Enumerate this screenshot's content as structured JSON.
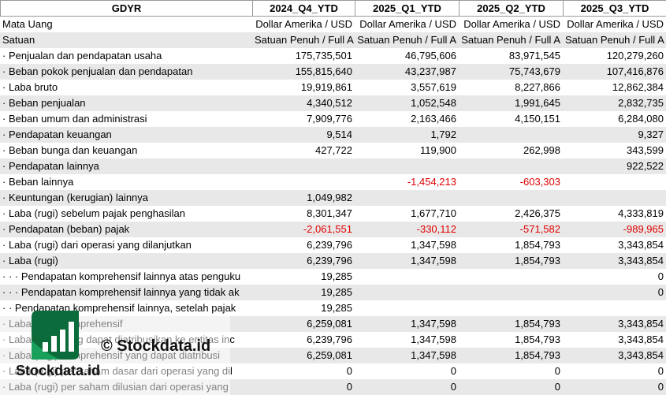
{
  "table": {
    "header": [
      "GDYR",
      "2024_Q4_YTD",
      "2025_Q1_YTD",
      "2025_Q2_YTD",
      "2025_Q3_YTD"
    ],
    "rows": [
      [
        "Mata Uang",
        "Dollar Amerika / USD",
        "Dollar Amerika / USD",
        "Dollar Amerika / USD",
        "Dollar Amerika / USD"
      ],
      [
        "Satuan",
        "Satuan Penuh / Full A",
        "Satuan Penuh / Full A",
        "Satuan Penuh / Full A",
        "Satuan Penuh / Full A"
      ],
      [
        "· Penjualan dan pendapatan usaha",
        "175,735,501",
        "46,795,606",
        "83,971,545",
        "120,279,260"
      ],
      [
        "· Beban pokok penjualan dan pendapatan",
        "155,815,640",
        "43,237,987",
        "75,743,679",
        "107,416,876"
      ],
      [
        "· Laba bruto",
        "19,919,861",
        "3,557,619",
        "8,227,866",
        "12,862,384"
      ],
      [
        "· Beban penjualan",
        "4,340,512",
        "1,052,548",
        "1,991,645",
        "2,832,735"
      ],
      [
        "· Beban umum dan administrasi",
        "7,909,776",
        "2,163,466",
        "4,150,151",
        "6,284,080"
      ],
      [
        "· Pendapatan keuangan",
        "9,514",
        "1,792",
        null,
        "9,327"
      ],
      [
        "· Beban bunga dan keuangan",
        "427,722",
        "119,900",
        "262,998",
        "343,599"
      ],
      [
        "· Pendapatan lainnya",
        null,
        null,
        null,
        "922,522"
      ],
      [
        "· Beban lainnya",
        null,
        "-1,454,213",
        "-603,303",
        null
      ],
      [
        "· Keuntungan (kerugian) lainnya",
        "1,049,982",
        null,
        null,
        null
      ],
      [
        "· Laba (rugi) sebelum pajak penghasilan",
        "8,301,347",
        "1,677,710",
        "2,426,375",
        "4,333,819"
      ],
      [
        "· Pendapatan (beban) pajak",
        "-2,061,551",
        "-330,112",
        "-571,582",
        "-989,965"
      ],
      [
        "· Laba (rugi) dari operasi yang dilanjutkan",
        "6,239,796",
        "1,347,598",
        "1,854,793",
        "3,343,854"
      ],
      [
        "· Laba (rugi)",
        "6,239,796",
        "1,347,598",
        "1,854,793",
        "3,343,854"
      ],
      [
        "· · · Pendapatan komprehensif lainnya atas penguku",
        "19,285",
        null,
        null,
        "0"
      ],
      [
        "· · · Pendapatan komprehensif lainnya yang tidak ak",
        "19,285",
        null,
        null,
        "0"
      ],
      [
        "· · Pendapatan komprehensif lainnya, setelah pajak",
        "19,285",
        null,
        null,
        null
      ],
      [
        "· Laba (rugi) komprehensif",
        "6,259,081",
        "1,347,598",
        "1,854,793",
        "3,343,854"
      ],
      [
        "· Laba (rugi) yang dapat diatribusikan ke entitas inc",
        "6,239,796",
        "1,347,598",
        "1,854,793",
        "3,343,854"
      ],
      [
        "· Laba (rugi) komprehensif yang dapat diatribusi",
        "6,259,081",
        "1,347,598",
        "1,854,793",
        "3,343,854"
      ],
      [
        "· Laba (rugi) per saham dasar dari operasi yang dil",
        "0",
        "0",
        "0",
        "0"
      ],
      [
        "· Laba (rugi) per saham dilusian dari operasi yang",
        "0",
        "0",
        "0",
        "0"
      ]
    ]
  },
  "watermark": {
    "center_text": "© Stockdata.id",
    "logo_text": "Stockdata.id"
  }
}
